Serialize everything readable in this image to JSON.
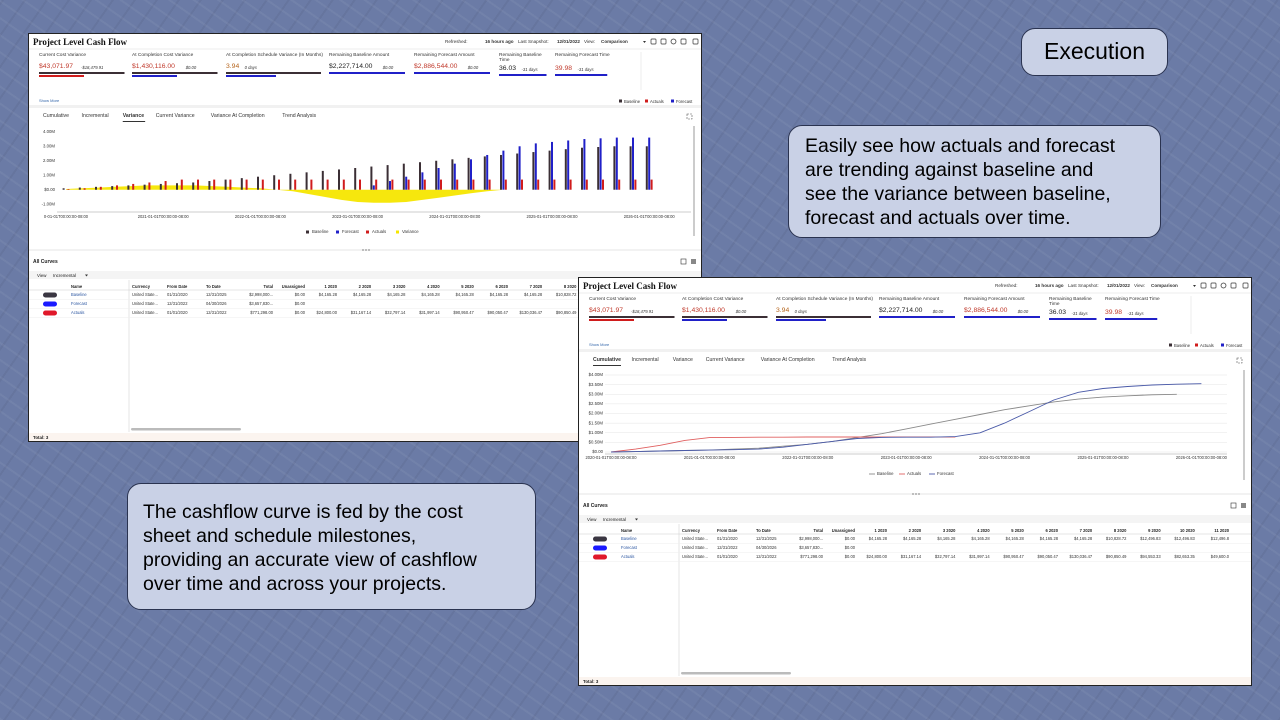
{
  "callouts": {
    "badge": "Execution",
    "right": [
      "Easily see how actuals and forecast",
      "are trending against baseline and",
      "see the variance between baseline,",
      "forecast and actuals over time."
    ],
    "left": [
      "The cashflow curve is fed by the cost",
      "sheet and schedule milestones,",
      "providing an accurate view of cashflow",
      "over time and across your projects."
    ]
  },
  "dashboard": {
    "title": "Project Level Cash Flow",
    "header": [
      "Refreshed:",
      "16 hours ago",
      "Last Snapshot:",
      "12/01/2022",
      "View:",
      "Comparison"
    ],
    "kpis": [
      {
        "label": "Current Cost Variance",
        "value": "$43,071.97",
        "sub": "-$18,479.91",
        "color": "#c0392b"
      },
      {
        "label": "At Completion Cost Variance",
        "value": "$1,430,116.00",
        "sub": "$0.00",
        "color": "#c0392b"
      },
      {
        "label": "At Completion Schedule Variance (In Months)",
        "value": "3.94",
        "sub": "0 days",
        "color": "#b5651d"
      },
      {
        "label": "Remaining Baseline Amount",
        "value": "$2,227,714.00",
        "sub": "$0.00",
        "color": "#222222"
      },
      {
        "label": "Remaining Forecast Amount",
        "value": "$2,886,544.00",
        "sub": "$0.00",
        "color": "#c0392b"
      },
      {
        "label": "Remaining Baseline Time",
        "value": "36.03",
        "sub": "-31 days",
        "color": "#222222"
      },
      {
        "label": "Remaining Forecast Time",
        "value": "39.98",
        "sub": "-31 days",
        "color": "#c0392b"
      }
    ],
    "show_more": "Show More",
    "legend": [
      {
        "name": "Baseline",
        "color": "#3b2f35"
      },
      {
        "name": "Actuals",
        "color": "#d01c1c"
      },
      {
        "name": "Forecast",
        "color": "#2020c8"
      }
    ],
    "tabs": [
      "Cumulative",
      "Incremental",
      "Variance",
      "Current Variance",
      "Variance At Completion",
      "Trend Analysis"
    ],
    "all_curves": "All Curves",
    "view": "View",
    "view_mode": "Incremental",
    "table": {
      "columns": [
        "Name",
        "Currency",
        "From Date",
        "To Date",
        "Total",
        "Unassigned",
        "1 2020",
        "2 2020",
        "3 2020",
        "4 2020",
        "5 2020",
        "6 2020",
        "7 2020",
        "8 2020",
        "9 2020",
        "10 2020",
        "11 2020"
      ],
      "rows": [
        {
          "color": "#3a3642",
          "cells": [
            "Baseline",
            "United State...",
            "01/31/2020",
            "12/31/2025",
            "$2,998,000...",
            "$0.00",
            "$4,165.28",
            "$4,165.28",
            "$4,165.28",
            "$4,165.28",
            "$4,165.28",
            "$4,165.28",
            "$4,165.28",
            "$10,828.72",
            "$12,496.83",
            "$12,496.83",
            "$12,496.8"
          ]
        },
        {
          "color": "#1a1aff",
          "cells": [
            "Forecast",
            "United State...",
            "12/31/2022",
            "04/30/2026",
            "$3,657,830...",
            "$0.00"
          ]
        },
        {
          "color": "#e0182a",
          "cells": [
            "Actuals",
            "United State...",
            "01/01/2020",
            "12/31/2022",
            "$771,298.00",
            "$0.00",
            "$24,800.00",
            "$31,167.14",
            "$32,797.14",
            "$31,997.14",
            "$90,950.47",
            "$90,050.47",
            "$130,036.47",
            "$90,850.49",
            "$94,553.33",
            "$82,653.35",
            "$49,600.0"
          ]
        }
      ]
    },
    "total": "Total: 3"
  },
  "chart_data": [
    {
      "type": "bar",
      "ylim": [
        -1.4,
        4.4
      ],
      "yticks": [
        {
          "value": 4,
          "label": "4.00M"
        },
        {
          "value": 3,
          "label": "3.00M"
        },
        {
          "value": 2,
          "label": "2.00M"
        },
        {
          "value": 1,
          "label": "1.00M"
        },
        {
          "value": 0,
          "label": "$0.00"
        },
        {
          "value": -1,
          "label": "-1.00M"
        }
      ],
      "grid": false,
      "categories": [
        "0-01-01T00:00:00-08:00",
        null,
        null,
        null,
        null,
        null,
        "2021-01-01T00:00:00-08:00",
        null,
        null,
        null,
        null,
        null,
        "2022-01-01T00:00:00-08:00",
        null,
        null,
        null,
        null,
        null,
        "2023-01-01T00:00:00-08:00",
        null,
        null,
        null,
        null,
        null,
        "2024-01-01T00:00:00-08:00",
        null,
        null,
        null,
        null,
        null,
        "2025-01-01T00:00:00-08:00",
        null,
        null,
        null,
        null,
        null,
        "2026-01-01T00:00:00-08:00"
      ],
      "series": [
        {
          "name": "Baseline",
          "color": "#3b2f35",
          "values": [
            0.1,
            0.15,
            0.2,
            0.25,
            0.3,
            0.35,
            0.4,
            0.45,
            0.5,
            0.6,
            0.7,
            0.8,
            0.9,
            1.0,
            1.1,
            1.2,
            1.3,
            1.4,
            1.5,
            1.6,
            1.7,
            1.8,
            1.9,
            2.0,
            2.1,
            2.2,
            2.3,
            2.4,
            2.5,
            2.6,
            2.7,
            2.8,
            2.9,
            2.95,
            3.0,
            3.0,
            3.0
          ]
        },
        {
          "name": "Forecast",
          "color": "#2020c8",
          "values": [
            0,
            0,
            0,
            0,
            0,
            0,
            0,
            0,
            0,
            0,
            0,
            0,
            0,
            0,
            0,
            0,
            0,
            0,
            0,
            0.3,
            0.6,
            0.9,
            1.2,
            1.5,
            1.8,
            2.1,
            2.4,
            2.7,
            3.0,
            3.2,
            3.3,
            3.4,
            3.5,
            3.55,
            3.6,
            3.6,
            3.6
          ]
        },
        {
          "name": "Actuals",
          "color": "#d01c1c",
          "values": [
            0.05,
            0.1,
            0.2,
            0.3,
            0.4,
            0.5,
            0.6,
            0.7,
            0.7,
            0.7,
            0.7,
            0.7,
            0.7,
            0.7,
            0.7,
            0.7,
            0.7,
            0.7,
            0.7,
            0.7,
            0.7,
            0.7,
            0.7,
            0.7,
            0.7,
            0.7,
            0.7,
            0.7,
            0.7,
            0.7,
            0.7,
            0.7,
            0.7,
            0.7,
            0.7,
            0.7,
            0.7
          ]
        },
        {
          "name": "Variance",
          "color": "#f5e600",
          "style": "area",
          "values": [
            0.05,
            0.1,
            0.15,
            0.2,
            0.25,
            0.3,
            0.3,
            0.3,
            0.3,
            0.25,
            0.2,
            0.15,
            0.1,
            0,
            -0.1,
            -0.3,
            -0.5,
            -0.7,
            -0.85,
            -0.9,
            -0.9,
            -0.85,
            -0.7,
            -0.55,
            -0.4,
            -0.25,
            -0.1,
            0,
            0,
            0,
            0,
            0,
            0,
            0,
            0,
            0,
            0
          ]
        }
      ]
    },
    {
      "type": "line",
      "ylim": [
        0,
        4
      ],
      "yticks": [
        {
          "value": 0,
          "label": "$0.00"
        },
        {
          "value": 0.5,
          "label": "$0.50M"
        },
        {
          "value": 1,
          "label": "$1.00M"
        },
        {
          "value": 1.5,
          "label": "$1.50M"
        },
        {
          "value": 2,
          "label": "$2.00M"
        },
        {
          "value": 2.5,
          "label": "$2.50M"
        },
        {
          "value": 3,
          "label": "$3.00M"
        },
        {
          "value": 3.5,
          "label": "$3.50M"
        },
        {
          "value": 4,
          "label": "$4.00M"
        }
      ],
      "grid": true,
      "categories": [
        "2020-01-01T00:00:00-08:00",
        null,
        null,
        null,
        "2021-01-01T00:00:00-08:00",
        null,
        null,
        null,
        "2022-01-01T00:00:00-08:00",
        null,
        null,
        null,
        "2023-01-01T00:00:00-08:00",
        null,
        null,
        null,
        "2024-01-01T00:00:00-08:00",
        null,
        null,
        null,
        "2025-01-01T00:00:00-08:00",
        null,
        null,
        null,
        "2026-01-01T00:00:00-08:00"
      ],
      "series": [
        {
          "name": "Baseline",
          "color": "#8a8a8a",
          "values": [
            0,
            0.02,
            0.05,
            0.08,
            0.1,
            0.15,
            0.2,
            0.3,
            0.4,
            0.55,
            0.75,
            0.95,
            1.2,
            1.45,
            1.7,
            1.95,
            2.2,
            2.4,
            2.6,
            2.75,
            2.85,
            2.92,
            2.97,
            3.0,
            null
          ]
        },
        {
          "name": "Actuals",
          "color": "#e06060",
          "values": [
            0,
            0.15,
            0.35,
            0.6,
            0.75,
            0.76,
            0.77,
            0.77,
            0.78,
            0.78,
            0.78,
            0.78,
            0.78,
            0.78,
            0.78,
            null,
            null,
            null,
            null,
            null,
            null,
            null,
            null,
            null,
            null
          ]
        },
        {
          "name": "Forecast",
          "color": "#4a5aa8",
          "values": [
            0,
            0.02,
            0.05,
            0.08,
            0.1,
            0.12,
            0.15,
            0.25,
            0.4,
            0.55,
            0.7,
            0.76,
            0.77,
            0.77,
            0.8,
            1.0,
            1.5,
            2.1,
            2.7,
            3.1,
            3.3,
            3.4,
            3.48,
            3.52,
            3.55
          ]
        }
      ]
    }
  ]
}
